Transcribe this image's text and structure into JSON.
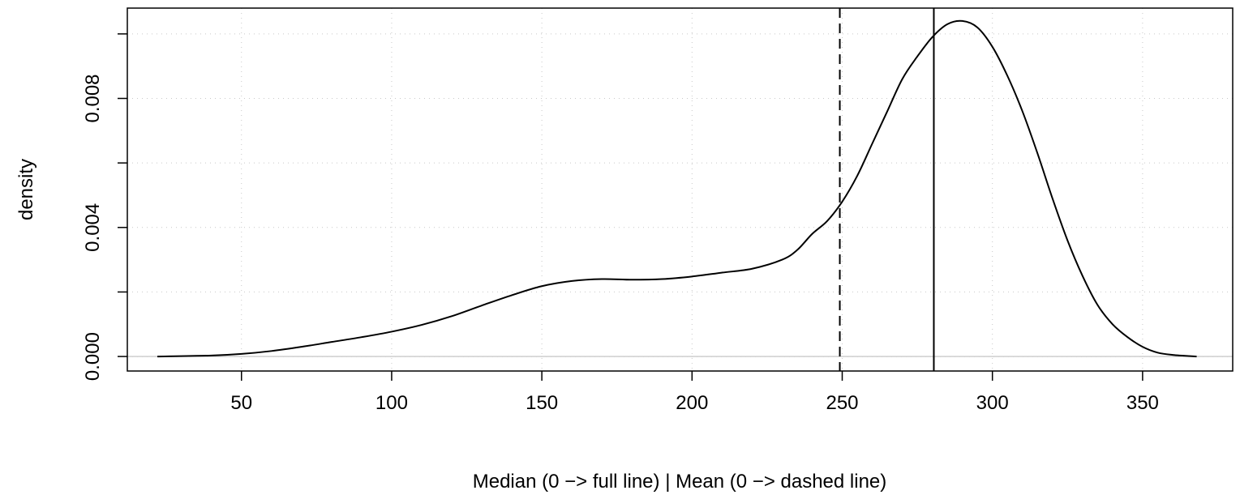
{
  "chart_data": {
    "type": "line",
    "title": "",
    "xlabel": "Median (0 −> full line) | Mean (0 −> dashed line)",
    "ylabel": "density",
    "xlim": [
      12,
      380
    ],
    "ylim": [
      -0.00045,
      0.0108
    ],
    "x_ticks": [
      "50",
      "100",
      "150",
      "200",
      "250",
      "300",
      "350"
    ],
    "x_tick_values": [
      50,
      100,
      150,
      200,
      250,
      300,
      350
    ],
    "y_ticks": [
      "0.000",
      "0.004",
      "0.008"
    ],
    "y_tick_values": [
      0,
      0.004,
      0.008
    ],
    "y_minor_ticks": [
      0.002,
      0.006,
      0.01
    ],
    "grid": true,
    "series": [
      {
        "x": [
          22,
          40,
          50,
          60,
          70,
          80,
          90,
          100,
          110,
          120,
          130,
          140,
          150,
          160,
          170,
          180,
          190,
          200,
          210,
          220,
          230,
          235,
          240,
          245,
          250,
          255,
          260,
          265,
          270,
          275,
          280,
          285,
          290,
          295,
          300,
          305,
          310,
          315,
          320,
          325,
          330,
          335,
          340,
          345,
          350,
          355,
          360,
          368
        ],
        "y": [
          0.0,
          3e-05,
          8e-05,
          0.00017,
          0.0003,
          0.00045,
          0.0006,
          0.00077,
          0.00098,
          0.00125,
          0.00158,
          0.0019,
          0.00218,
          0.00234,
          0.0024,
          0.00238,
          0.0024,
          0.00248,
          0.0026,
          0.00272,
          0.003,
          0.0033,
          0.0038,
          0.0042,
          0.0048,
          0.0056,
          0.0066,
          0.0076,
          0.0086,
          0.0093,
          0.0099,
          0.0103,
          0.0104,
          0.0102,
          0.0096,
          0.0087,
          0.0076,
          0.0063,
          0.0049,
          0.0036,
          0.0025,
          0.0016,
          0.001,
          0.0006,
          0.0003,
          0.00012,
          5e-05,
          0.0
        ]
      }
    ],
    "vlines": [
      {
        "x": 280.5,
        "style": "solid"
      },
      {
        "x": 249.2,
        "style": "dashed"
      }
    ],
    "hline": {
      "y": 0,
      "color": "#bebebe"
    }
  }
}
